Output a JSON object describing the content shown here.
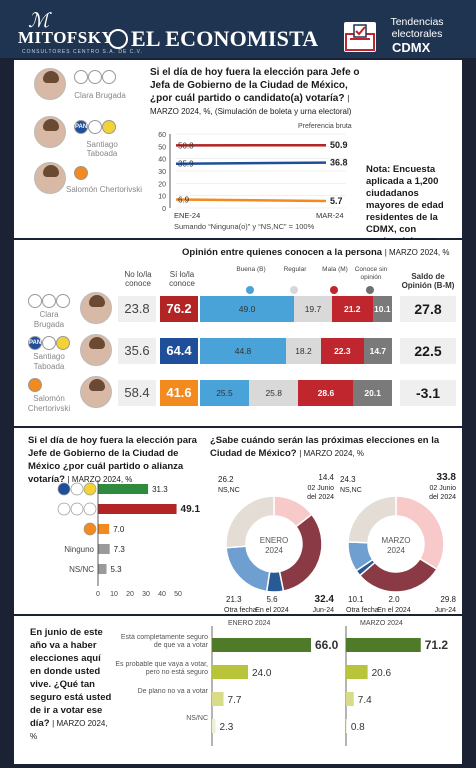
{
  "header": {
    "logo_mitofsky": "MITOFSKY",
    "mitofsky_tagline": "CONSULTORES CENTRO S.A. DE C.V.",
    "logo_economista": "EL ECONOMISTA",
    "tendencias_title": "Tendencias electorales",
    "tendencias_place": "CDMX"
  },
  "panel1": {
    "question": "Si el día de hoy fuera la elección para Jefe o Jefa de Gobierno de la Ciudad de México, ¿por cuál partido o candidato(a) votaría?",
    "question_meta": "| MARZO 2024, %, (Simulación de boleta y urna electoral)",
    "chart_caption": "Preferencia bruta",
    "footnote": "Sumando “Ninguna(o)” y “NS,NC” = 100%",
    "note": "Nota: Encuesta aplicada a 1,200 ciudadanos mayores de edad residentes de la CDMX, con credencial para votar.",
    "candidates": [
      {
        "name": "Clara Brugada",
        "color": "#8b2020"
      },
      {
        "name": "Santiago Taboada",
        "color": "#1f4f9a"
      },
      {
        "name": "Salomón Chertorivski",
        "color": "#f28a1f"
      }
    ]
  },
  "panel2": {
    "title": "Opinión entre quienes conocen a la persona",
    "title_meta": "| MARZO 2024, %",
    "col_no": "No lo/la conoce",
    "col_si": "Sí lo/la conoce",
    "legend": [
      {
        "label": "Buena (B)",
        "color": "#4aa3d8"
      },
      {
        "label": "Regular",
        "color": "#d7d7d7"
      },
      {
        "label": "Mala (M)",
        "color": "#c0262d"
      },
      {
        "label": "Conoce sin opinión",
        "color": "#6f6f6f"
      }
    ],
    "saldo_label": "Saldo de Opinión (B-M)",
    "rows": [
      {
        "name": "Clara Brugada",
        "no": "23.8",
        "si": "76.2",
        "si_color": "#b32424",
        "buena": "49.0",
        "regular": "19.7",
        "mala": "21.2",
        "sin": "10.1",
        "saldo": "27.8"
      },
      {
        "name": "Santiago Taboada",
        "no": "35.6",
        "si": "64.4",
        "si_color": "#1f4f9a",
        "buena": "44.8",
        "regular": "18.2",
        "mala": "22.3",
        "sin": "14.7",
        "saldo": "22.5"
      },
      {
        "name": "Salomón Chertorivski",
        "no": "58.4",
        "si": "41.6",
        "si_color": "#f28a1f",
        "buena": "25.5",
        "regular": "25.8",
        "mala": "28.6",
        "sin": "20.1",
        "saldo": "-3.1"
      }
    ]
  },
  "panel3": {
    "question": "Si el día de hoy fuera la elección para Jefe de Gobierno de la Ciudad de México ¿por cuál partido o alianza votaría?",
    "question_meta": "| MARZO 2024, %",
    "donut_question": "¿Sabe cuándo serán las próximas elecciones en la Ciudad de México?",
    "donut_meta": "| MARZO 2024, %"
  },
  "panel4": {
    "question": "En junio de este año va a haber elecciones aquí en donde usted vive. ¿Qué tan seguro está usted de ir a votar ese día?",
    "question_meta": "| MARZO 2024, %",
    "col_enero": "ENERO 2024",
    "col_marzo": "MARZO 2024"
  },
  "chart_data": [
    {
      "type": "line",
      "title": "Preferencia bruta",
      "x": [
        "ENE-24",
        "MAR-24"
      ],
      "ylim": [
        0,
        60
      ],
      "yticks": [
        0,
        10,
        20,
        30,
        40,
        50,
        60
      ],
      "series": [
        {
          "name": "Clara Brugada",
          "values": [
            50.8,
            50.9
          ],
          "color": "#b32424"
        },
        {
          "name": "Santiago Taboada",
          "values": [
            35.9,
            36.8
          ],
          "color": "#1f4f9a"
        },
        {
          "name": "Salomón Chertorivski",
          "values": [
            6.9,
            5.7
          ],
          "color": "#f28a1f"
        }
      ]
    },
    {
      "type": "bar",
      "orientation": "horizontal",
      "categories": [
        "PAN-PRI-PRD",
        "MORENA-PT-PVEM",
        "MC",
        "Ninguno",
        "NS/NC"
      ],
      "category_labels": [
        "",
        "",
        "",
        "Ninguno",
        "NS/NC"
      ],
      "values": [
        31.3,
        49.1,
        7.0,
        7.3,
        5.3
      ],
      "colors": [
        "#2e8b3e",
        "#b32424",
        "#f28a1f",
        "#9a9a9a",
        "#9a9a9a"
      ],
      "xlim": [
        0,
        50
      ],
      "xticks": [
        0,
        10,
        20,
        30,
        40,
        50
      ]
    },
    {
      "type": "pie",
      "title": "ENERO 2024",
      "center_label": [
        "ENERO",
        "2024"
      ],
      "slices": [
        {
          "label": "02 Junio del 2024",
          "value": 14.4,
          "color": "#f7c9c9"
        },
        {
          "label": "Jun-24",
          "value": 32.4,
          "color": "#8a3a45"
        },
        {
          "label": "En el 2024",
          "value": 5.6,
          "color": "#2a5a95"
        },
        {
          "label": "Otra fecha",
          "value": 21.3,
          "color": "#6f9ed0"
        },
        {
          "label": "NS,NC",
          "value": 26.2,
          "color": "#e4ddd6"
        }
      ]
    },
    {
      "type": "pie",
      "title": "MARZO 2024",
      "center_label": [
        "MARZO",
        "2024"
      ],
      "slices": [
        {
          "label": "02 Junio del 2024",
          "value": 33.8,
          "color": "#f7c9c9"
        },
        {
          "label": "Jun-24",
          "value": 29.8,
          "color": "#8a3a45"
        },
        {
          "label": "En el 2024",
          "value": 2.0,
          "color": "#2a5a95"
        },
        {
          "label": "Otra fecha",
          "value": 10.1,
          "color": "#6f9ed0"
        },
        {
          "label": "NS,NC",
          "value": 24.3,
          "color": "#e4ddd6"
        }
      ]
    },
    {
      "type": "bar",
      "orientation": "horizontal",
      "categories": [
        "Está completamente seguro de que va a votar",
        "Es probable que vaya a votar, pero no está seguro",
        "De plano no va a votar",
        "NS/NC"
      ],
      "series": [
        {
          "name": "ENERO 2024",
          "values": [
            66.0,
            24.0,
            7.7,
            2.3
          ],
          "colors": [
            "#4e7a2a",
            "#b8c43a",
            "#d8dc8a",
            "#ecefd0"
          ]
        },
        {
          "name": "MARZO 2024",
          "values": [
            71.2,
            20.6,
            7.4,
            0.8
          ],
          "colors": [
            "#4e7a2a",
            "#b8c43a",
            "#d8dc8a",
            "#ecefd0"
          ]
        }
      ]
    }
  ]
}
